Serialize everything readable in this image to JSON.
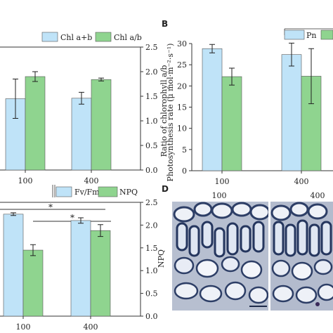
{
  "colors": {
    "series_a": "#bfe3f8",
    "series_b": "#8fd48f",
    "edge": "#555555",
    "axis": "#333333",
    "text": "#222222"
  },
  "chart_data": [
    {
      "id": "A",
      "type": "bar",
      "categories": [
        "100",
        "400"
      ],
      "series": [
        {
          "name": "Chl a+b",
          "values": [
            1.45,
            1.46
          ],
          "errors": [
            0.4,
            0.12
          ]
        },
        {
          "name": "Chl a/b",
          "values": [
            1.9,
            1.84
          ],
          "errors": [
            0.1,
            0.03
          ]
        }
      ],
      "ylabel": "Ratio of chlorophyll a/b",
      "ylim": [
        0,
        2.5
      ],
      "yticks": [
        "0.0",
        "0.5",
        "1.0",
        "1.5",
        "2.0",
        "2.5"
      ],
      "legend": "top-right"
    },
    {
      "id": "B",
      "type": "bar",
      "categories": [
        "100",
        "400"
      ],
      "series": [
        {
          "name": "Pn",
          "values": [
            28.8,
            27.4
          ],
          "errors": [
            1.0,
            2.7
          ]
        },
        {
          "name": "",
          "values": [
            22.2,
            22.3
          ],
          "errors": [
            2.0,
            6.5
          ]
        }
      ],
      "ylabel": "Photosynthesis rate (μ mol·m⁻²·s⁻¹)",
      "ylim": [
        0,
        30
      ],
      "yticks": [
        "0",
        "5",
        "10",
        "15",
        "20",
        "25",
        "30"
      ],
      "legend": "top-right"
    },
    {
      "id": "C",
      "type": "bar",
      "categories": [
        "100",
        "400"
      ],
      "series": [
        {
          "name": "Fv/Fm",
          "values": [
            2.24,
            2.1
          ],
          "errors": [
            0.03,
            0.06
          ]
        },
        {
          "name": "NPQ",
          "values": [
            1.45,
            1.88
          ],
          "errors": [
            0.12,
            0.13
          ]
        }
      ],
      "ylabel": "NPQ",
      "ylim": [
        0,
        2.5
      ],
      "yticks": [
        "0.0",
        "0.5",
        "1.0",
        "1.5",
        "2.0",
        "2.5"
      ],
      "annotations": [
        "*",
        "*"
      ],
      "legend": "top-right"
    }
  ],
  "panel_letters": {
    "b": "B",
    "d": "D"
  },
  "micrograph": {
    "label_left": "100",
    "label_right": "400"
  }
}
